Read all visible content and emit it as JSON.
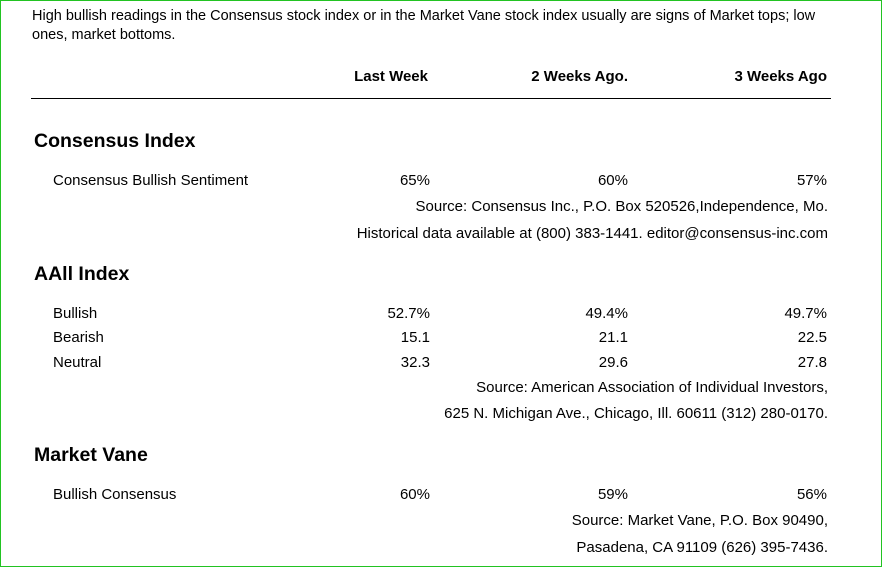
{
  "intro": "High bullish readings in the Consensus stock index or in the Market Vane stock index usually are signs of Market tops; low ones, market bottoms.",
  "columns": [
    "Last Week",
    "2 Weeks Ago.",
    "3 Weeks Ago"
  ],
  "consensus": {
    "title": "Consensus Index",
    "rows": [
      {
        "label": "Consensus Bullish Sentiment",
        "values": [
          "65%",
          "60%",
          "57%"
        ]
      }
    ],
    "source1": "Source: Consensus Inc., P.O. Box 520526,Independence, Mo.",
    "source2": "Historical data available at (800) 383-1441. editor@consensus-inc.com"
  },
  "aaii": {
    "title": "AAll Index",
    "rows": [
      {
        "label": "Bullish",
        "values": [
          "52.7%",
          "49.4%",
          "49.7%"
        ]
      },
      {
        "label": "Bearish",
        "values": [
          "15.1",
          "21.1",
          "22.5"
        ]
      },
      {
        "label": "Neutral",
        "values": [
          "32.3",
          "29.6",
          "27.8"
        ]
      }
    ],
    "source1": "Source: American Association of Individual Investors,",
    "source2": "625 N. Michigan Ave., Chicago, Ill. 60611 (312) 280-0170."
  },
  "marketvane": {
    "title": "Market Vane",
    "rows": [
      {
        "label": "Bullish Consensus",
        "values": [
          "60%",
          "59%",
          "56%"
        ]
      }
    ],
    "source1": "Source: Market Vane, P.O. Box 90490,",
    "source2": "Pasadena, CA 91109 (626) 395-7436."
  }
}
